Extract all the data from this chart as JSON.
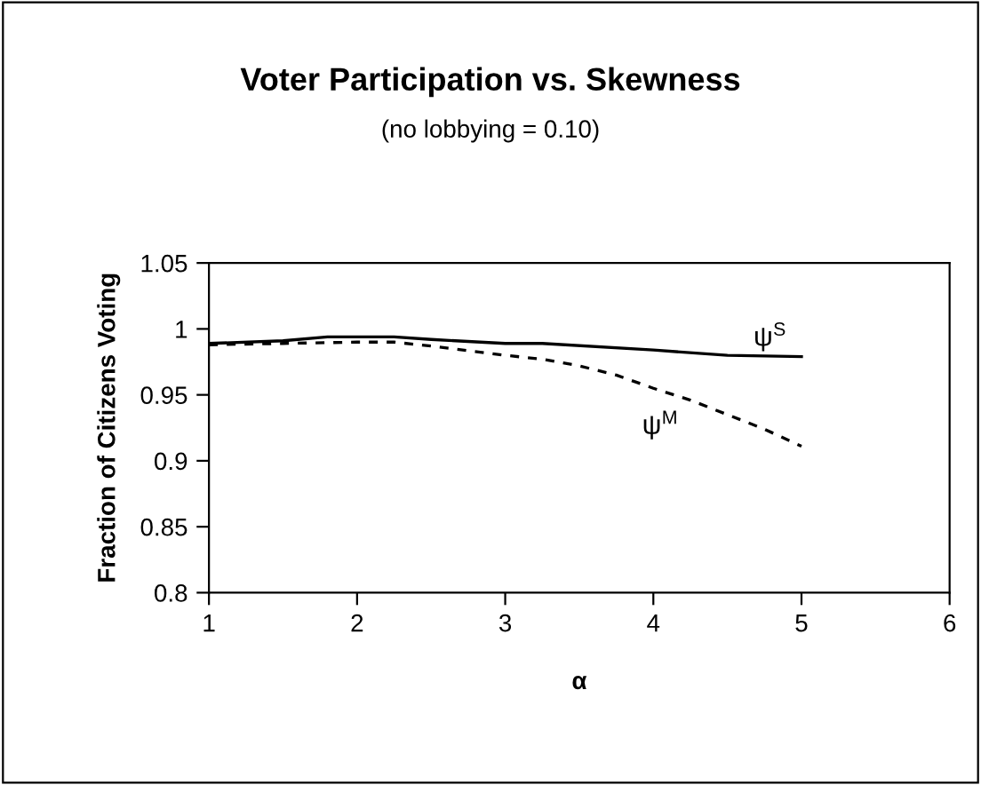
{
  "chart_data": {
    "type": "line",
    "title": "Voter Participation vs. Skewness",
    "subtitle": "(no lobbying = 0.10)",
    "xlabel": "α",
    "ylabel": "Fraction of Citizens Voting",
    "xlim": [
      1,
      6
    ],
    "xticks": [
      1,
      2,
      3,
      4,
      5,
      6
    ],
    "ylim": [
      0.8,
      1.05
    ],
    "yticks": [
      0.8,
      0.85,
      0.9,
      0.95,
      1,
      1.05
    ],
    "grid": false,
    "legend": false,
    "marker": "none",
    "series": [
      {
        "name": "ψ$^{S}$",
        "color": "#000000",
        "line_style": "solid",
        "x": [
          1,
          1.5,
          1.8,
          2.25,
          2.5,
          3,
          3.25,
          4,
          4.5,
          5
        ],
        "values": [
          0.989,
          0.991,
          0.994,
          0.994,
          0.992,
          0.989,
          0.989,
          0.984,
          0.98,
          0.979
        ]
      },
      {
        "name": "ψ$^{M}$",
        "color": "#000000",
        "line_style": "dashed",
        "x": [
          1,
          1.5,
          2,
          2.25,
          2.5,
          3,
          3.25,
          3.5,
          3.75,
          4,
          4.25,
          4.5,
          4.75,
          5
        ],
        "values": [
          0.988,
          0.989,
          0.99,
          0.99,
          0.987,
          0.98,
          0.977,
          0.972,
          0.965,
          0.955,
          0.946,
          0.935,
          0.924,
          0.911
        ]
      }
    ]
  }
}
